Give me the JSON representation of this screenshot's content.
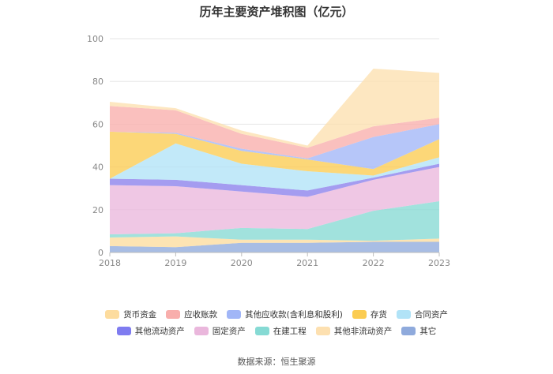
{
  "chart_data": {
    "type": "area",
    "stacked": true,
    "title": "历年主要资产堆积图（亿元）",
    "x": [
      "2018",
      "2019",
      "2020",
      "2021",
      "2022",
      "2023"
    ],
    "ylim": [
      0,
      100
    ],
    "yticks": [
      "0",
      "20",
      "40",
      "60",
      "80",
      "100"
    ],
    "xlabel": "",
    "ylabel": "",
    "legend_position": "bottom",
    "legend_order": [
      "货币资金",
      "应收账款",
      "其他应收款(含利息和股利)",
      "存货",
      "合同资产",
      "其他流动资产",
      "固定资产",
      "在建工程",
      "其他非流动资产",
      "其它"
    ],
    "series": [
      {
        "name": "其它",
        "color": "#8faadc",
        "values": [
          3,
          2.5,
          4.5,
          4.5,
          5,
          5
        ]
      },
      {
        "name": "货币资金",
        "color": "#fddc9e",
        "values": [
          4,
          5,
          1.5,
          1.5,
          0.5,
          1.5
        ]
      },
      {
        "name": "在建工程",
        "color": "#86dad4",
        "values": [
          1.5,
          1.5,
          5.5,
          5,
          14,
          17.5
        ]
      },
      {
        "name": "固定资产",
        "color": "#eab7dc",
        "values": [
          23,
          22,
          17,
          15,
          14.5,
          16
        ]
      },
      {
        "name": "其他流动资产",
        "color": "#8a80ec",
        "values": [
          3,
          3,
          3,
          3,
          1,
          1.5
        ]
      },
      {
        "name": "合同资产",
        "color": "#b1e3f7",
        "values": [
          0,
          17,
          10,
          9,
          1,
          3
        ]
      },
      {
        "name": "存货",
        "color": "#fbcc52",
        "values": [
          22,
          4.5,
          6,
          5.5,
          3,
          8.5
        ]
      },
      {
        "name": "其他应收款(含利息和股利)",
        "color": "#a1b6f7",
        "values": [
          0,
          0.5,
          1,
          0.5,
          15,
          7
        ]
      },
      {
        "name": "应收账款",
        "color": "#f8aeac",
        "values": [
          12,
          10.5,
          7,
          5,
          5,
          3
        ]
      },
      {
        "name": "其他非流动资产",
        "color": "#fde0b0",
        "values": [
          2,
          1,
          1.5,
          1,
          27,
          21
        ]
      }
    ]
  },
  "legend": {
    "row1": [
      {
        "label": "货币资金",
        "color": "#fddc9e"
      },
      {
        "label": "应收账款",
        "color": "#f8aeac"
      },
      {
        "label": "其他应收款(含利息和股利)",
        "color": "#a1b6f7"
      },
      {
        "label": "存货",
        "color": "#fbcc52"
      },
      {
        "label": "合同资产",
        "color": "#b1e3f7"
      }
    ],
    "row2": [
      {
        "label": "其他流动资产",
        "color": "#7f7cf0"
      },
      {
        "label": "固定资产",
        "color": "#eab7dc"
      },
      {
        "label": "在建工程",
        "color": "#86dad4"
      },
      {
        "label": "其他非流动资产",
        "color": "#fde0b0"
      },
      {
        "label": "其它",
        "color": "#8faadc"
      }
    ]
  },
  "source": "数据来源：恒生聚源"
}
